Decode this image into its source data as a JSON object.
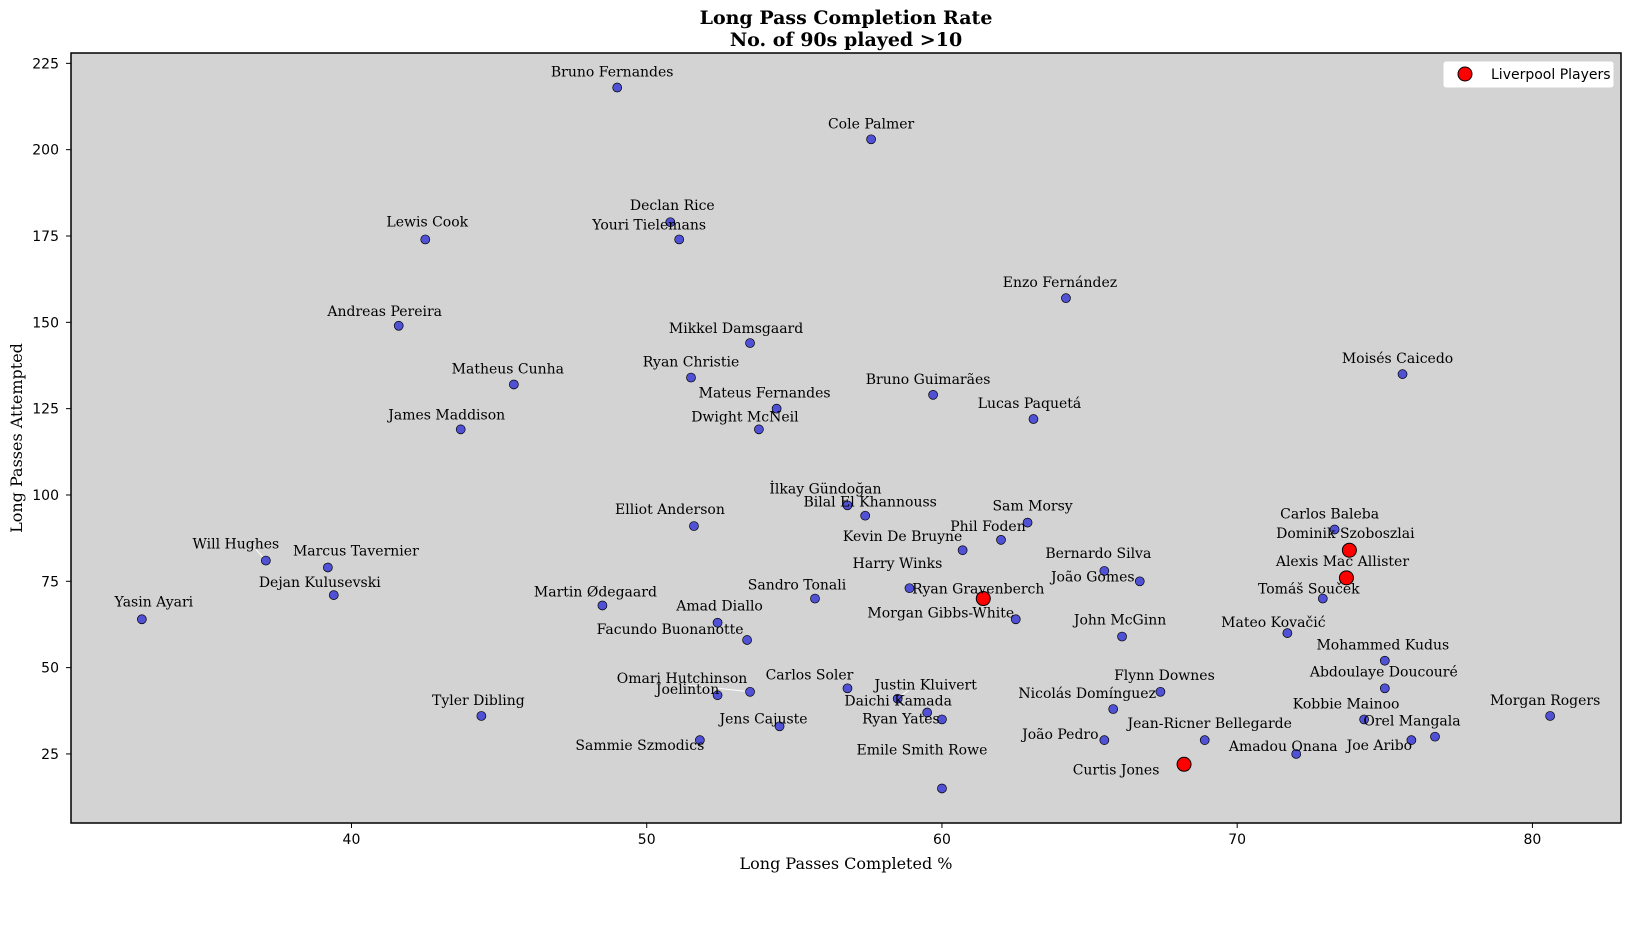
{
  "chart_data": {
    "type": "scatter",
    "title": "Long Pass Completion Rate",
    "subtitle": "No. of 90s played >10",
    "xlabel": "Long Passes Completed %",
    "ylabel": "Long Passes Attempted",
    "xlim": [
      30.5,
      83
    ],
    "ylim": [
      5,
      228
    ],
    "xticks": [
      40,
      50,
      60,
      70,
      80
    ],
    "yticks": [
      25,
      50,
      75,
      100,
      125,
      150,
      175,
      200,
      225
    ],
    "grid": false,
    "legend": {
      "label": "Liverpool Players",
      "position": "top-right"
    },
    "colors": {
      "background": "#d3d3d3",
      "other_players": "#3a3ad6",
      "liverpool": "#ff0000",
      "edge": "#000000"
    },
    "points": [
      {
        "name": "Bruno Fernandes",
        "x": 49.0,
        "y": 218,
        "liverpool": false
      },
      {
        "name": "Cole Palmer",
        "x": 57.6,
        "y": 203,
        "liverpool": false
      },
      {
        "name": "Declan Rice",
        "x": 50.8,
        "y": 179,
        "liverpool": false
      },
      {
        "name": "Youri Tielemans",
        "x": 51.1,
        "y": 174,
        "liverpool": false
      },
      {
        "name": "Lewis Cook",
        "x": 42.5,
        "y": 174,
        "liverpool": false
      },
      {
        "name": "Enzo Fernández",
        "x": 64.2,
        "y": 157,
        "liverpool": false
      },
      {
        "name": "Andreas Pereira",
        "x": 41.6,
        "y": 149,
        "liverpool": false
      },
      {
        "name": "Mikkel Damsgaard",
        "x": 53.5,
        "y": 144,
        "liverpool": false
      },
      {
        "name": "Moisés Caicedo",
        "x": 75.6,
        "y": 135,
        "liverpool": false
      },
      {
        "name": "Ryan Christie",
        "x": 51.5,
        "y": 134,
        "liverpool": false
      },
      {
        "name": "Matheus Cunha",
        "x": 45.5,
        "y": 132,
        "liverpool": false
      },
      {
        "name": "Bruno Guimarães",
        "x": 59.7,
        "y": 129,
        "liverpool": false
      },
      {
        "name": "Mateus Fernandes",
        "x": 54.4,
        "y": 125,
        "liverpool": false
      },
      {
        "name": "Lucas Paquetá",
        "x": 63.1,
        "y": 122,
        "liverpool": false
      },
      {
        "name": "James Maddison",
        "x": 43.7,
        "y": 119,
        "liverpool": false
      },
      {
        "name": "Dwight McNeil",
        "x": 53.8,
        "y": 119,
        "liverpool": false
      },
      {
        "name": "İlkay Gündoğan",
        "x": 56.8,
        "y": 97,
        "liverpool": false
      },
      {
        "name": "Bilal El Khannouss",
        "x": 57.4,
        "y": 94,
        "liverpool": false
      },
      {
        "name": "Sam Morsy",
        "x": 62.9,
        "y": 92,
        "liverpool": false
      },
      {
        "name": "Elliot Anderson",
        "x": 51.6,
        "y": 91,
        "liverpool": false
      },
      {
        "name": "Carlos Baleba",
        "x": 73.3,
        "y": 90,
        "liverpool": false
      },
      {
        "name": "Phil Foden",
        "x": 62.0,
        "y": 87,
        "liverpool": false
      },
      {
        "name": "Dominik Szoboszlai",
        "x": 73.8,
        "y": 84,
        "liverpool": true
      },
      {
        "name": "Kevin De Bruyne",
        "x": 60.7,
        "y": 84,
        "liverpool": false
      },
      {
        "name": "Will Hughes",
        "x": 37.1,
        "y": 81,
        "liverpool": false
      },
      {
        "name": "Marcus Tavernier",
        "x": 39.2,
        "y": 79,
        "liverpool": false
      },
      {
        "name": "Bernardo Silva",
        "x": 65.5,
        "y": 78,
        "liverpool": false
      },
      {
        "name": "Alexis Mac Allister",
        "x": 73.7,
        "y": 76,
        "liverpool": true
      },
      {
        "name": "João Gomes",
        "x": 66.7,
        "y": 75,
        "liverpool": false
      },
      {
        "name": "Harry Winks",
        "x": 58.9,
        "y": 73,
        "liverpool": false
      },
      {
        "name": "Dejan Kulusevski",
        "x": 39.4,
        "y": 71,
        "liverpool": false
      },
      {
        "name": "Sandro Tonali",
        "x": 55.7,
        "y": 70,
        "liverpool": false
      },
      {
        "name": "Ryan Gravenberch",
        "x": 61.4,
        "y": 70,
        "liverpool": true
      },
      {
        "name": "Tomáš Souček",
        "x": 72.9,
        "y": 70,
        "liverpool": false
      },
      {
        "name": "Martin Ødegaard",
        "x": 48.5,
        "y": 68,
        "liverpool": false
      },
      {
        "name": "Yasin Ayari",
        "x": 32.9,
        "y": 64,
        "liverpool": false
      },
      {
        "name": "Morgan Gibbs-White",
        "x": 62.5,
        "y": 64,
        "liverpool": false
      },
      {
        "name": "Amad Diallo",
        "x": 52.4,
        "y": 63,
        "liverpool": false
      },
      {
        "name": "Mateo Kovačić",
        "x": 71.7,
        "y": 60,
        "liverpool": false
      },
      {
        "name": "John McGinn",
        "x": 66.1,
        "y": 59,
        "liverpool": false
      },
      {
        "name": "Facundo Buonanotte",
        "x": 53.4,
        "y": 58,
        "liverpool": false
      },
      {
        "name": "Mohammed Kudus",
        "x": 75.0,
        "y": 52,
        "liverpool": false
      },
      {
        "name": "Carlos Soler",
        "x": 56.8,
        "y": 44,
        "liverpool": false
      },
      {
        "name": "Abdoulaye Doucouré",
        "x": 75.0,
        "y": 44,
        "liverpool": false
      },
      {
        "name": "Omari Hutchinson",
        "x": 53.5,
        "y": 43,
        "liverpool": false
      },
      {
        "name": "Flynn Downes",
        "x": 67.4,
        "y": 43,
        "liverpool": false
      },
      {
        "name": "Joelinton",
        "x": 52.4,
        "y": 42,
        "liverpool": false
      },
      {
        "name": "Justin Kluivert",
        "x": 58.5,
        "y": 41,
        "liverpool": false
      },
      {
        "name": "Nicolás Domínguez",
        "x": 65.8,
        "y": 38,
        "liverpool": false
      },
      {
        "name": "Daichi Kamada",
        "x": 59.5,
        "y": 37,
        "liverpool": false
      },
      {
        "name": "Tyler Dibling",
        "x": 44.4,
        "y": 36,
        "liverpool": false
      },
      {
        "name": "Morgan Rogers",
        "x": 80.6,
        "y": 36,
        "liverpool": false
      },
      {
        "name": "Ryan Yates",
        "x": 60.0,
        "y": 35,
        "liverpool": false
      },
      {
        "name": "Kobbie Mainoo",
        "x": 74.3,
        "y": 35,
        "liverpool": false
      },
      {
        "name": "Jens Cajuste",
        "x": 54.5,
        "y": 33,
        "liverpool": false
      },
      {
        "name": "Orel Mangala",
        "x": 76.7,
        "y": 30,
        "liverpool": false
      },
      {
        "name": "Sammie Szmodics",
        "x": 51.8,
        "y": 29,
        "liverpool": false
      },
      {
        "name": "João Pedro",
        "x": 65.5,
        "y": 29,
        "liverpool": false
      },
      {
        "name": "Jean-Ricner Bellegarde",
        "x": 68.9,
        "y": 29,
        "liverpool": false
      },
      {
        "name": "Joe Aribo",
        "x": 75.9,
        "y": 29,
        "liverpool": false
      },
      {
        "name": "Amadou Onana",
        "x": 72.0,
        "y": 25,
        "liverpool": false
      },
      {
        "name": "Curtis Jones",
        "x": 68.2,
        "y": 22,
        "liverpool": true
      },
      {
        "name": "Emile Smith Rowe",
        "x": 60.0,
        "y": 15,
        "liverpool": false
      }
    ]
  }
}
